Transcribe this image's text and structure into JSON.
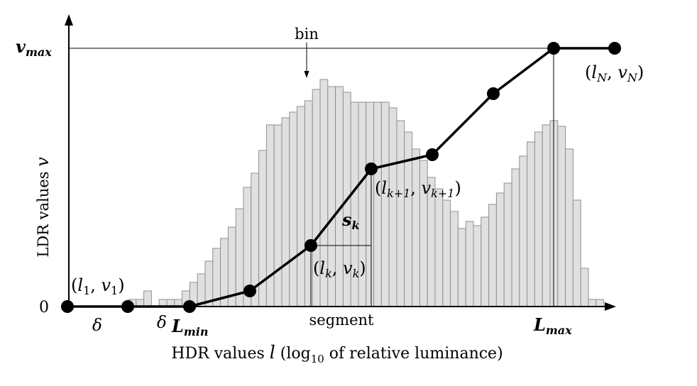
{
  "axes": {
    "x_label": {
      "main": "HDR values ",
      "var": "l",
      "open": " (log",
      "sub": "10",
      "rest": " of relative luminance)"
    },
    "y_label": {
      "main": "LDR values ",
      "var": "v"
    },
    "y_zero": "0",
    "y_max": {
      "base": "v",
      "sub": "max"
    }
  },
  "labels": {
    "bin": "bin",
    "segment": "segment",
    "delta_1": "δ",
    "delta_2": "δ",
    "L_min": {
      "base": "L",
      "sub": "min"
    },
    "L_max": {
      "base": "L",
      "sub": "max"
    },
    "first_point": {
      "open": "(",
      "l": "l",
      "l_sub": "1",
      "comma": ", ",
      "v": "v",
      "v_sub": "1",
      "close": ")"
    },
    "k_point": {
      "open": "(",
      "l": "l",
      "l_sub": "k",
      "comma": ", ",
      "v": "v",
      "v_sub": "k",
      "close": ")"
    },
    "k1_point": {
      "open": "(",
      "l": "l",
      "l_sub": "k+1",
      "comma": ", ",
      "v": "v",
      "v_sub": "k+1",
      "close": ")"
    },
    "last_point": {
      "open": "(",
      "l": "l",
      "l_sub": "N",
      "comma": ", ",
      "v": "v",
      "v_sub": "N",
      "close": ")"
    },
    "slope": {
      "base": "s",
      "sub": "k"
    }
  },
  "colors": {
    "bar_fill": "#e0e0e0",
    "bar_stroke": "#909090",
    "curve": "#000000"
  }
}
